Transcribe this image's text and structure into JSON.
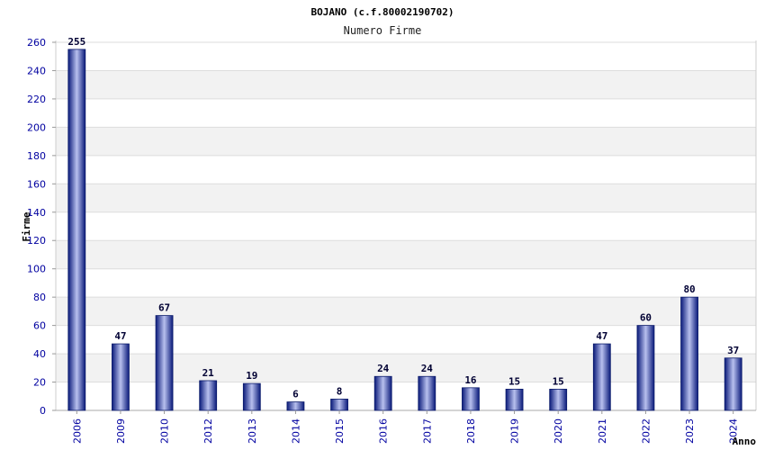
{
  "chart_data": {
    "type": "bar",
    "title": "BOJANO (c.f.80002190702)",
    "subtitle": "Numero Firme",
    "xlabel": "Anno",
    "ylabel": "Firme",
    "categories": [
      "2006",
      "2009",
      "2010",
      "2012",
      "2013",
      "2014",
      "2015",
      "2016",
      "2017",
      "2018",
      "2019",
      "2020",
      "2021",
      "2022",
      "2023",
      "2024"
    ],
    "values": [
      255,
      47,
      67,
      21,
      19,
      6,
      8,
      24,
      24,
      16,
      15,
      15,
      47,
      60,
      80,
      37
    ],
    "ylim": [
      0,
      260
    ],
    "yticks": [
      0,
      20,
      40,
      60,
      80,
      100,
      120,
      140,
      160,
      180,
      200,
      220,
      240,
      260
    ],
    "grid": true,
    "bar_color": "#1a2a8c"
  }
}
